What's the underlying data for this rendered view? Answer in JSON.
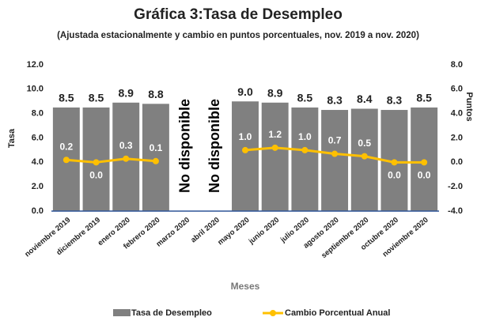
{
  "chart_data": {
    "type": "bar+line",
    "title": "Gráfica 3:Tasa de Desempleo",
    "subtitle": "(Ajustada estacionalmente y cambio en puntos porcentuales, nov. 2019 a nov. 2020)",
    "ylabel": "Tasa",
    "y2label": "Puntos",
    "xlabel": "Meses",
    "categories": [
      "noviembre 2019",
      "diciembre 2019",
      "enero 2020",
      "febrero 2020",
      "marzo 2020",
      "abril 2020",
      "mayo 2020",
      "junio 2020",
      "julio 2020",
      "agosto 2020",
      "septiembre 2020",
      "octubre 2020",
      "noviembre 2020"
    ],
    "series": [
      {
        "name": "Tasa de Desempleo",
        "type": "bar",
        "color": "#808080",
        "values": [
          8.5,
          8.5,
          8.9,
          8.8,
          null,
          null,
          9.0,
          8.9,
          8.5,
          8.3,
          8.4,
          8.3,
          8.5
        ],
        "value_labels": [
          "8.5",
          "8.5",
          "8.9",
          "8.8",
          null,
          null,
          "9.0",
          "8.9",
          "8.5",
          "8.3",
          "8.4",
          "8.3",
          "8.5"
        ]
      },
      {
        "name": "Cambio Porcentual Anual",
        "type": "line",
        "axis": "y2",
        "color": "#FFC000",
        "values": [
          0.2,
          0.0,
          0.3,
          0.1,
          null,
          null,
          1.0,
          1.2,
          1.0,
          0.7,
          0.5,
          0.0,
          0.0
        ],
        "value_labels": [
          "0.2",
          "0.0",
          "0.3",
          "0.1",
          null,
          null,
          "1.0",
          "1.2",
          "1.0",
          "0.7",
          "0.5",
          "0.0",
          "0.0"
        ]
      }
    ],
    "annotations": [
      "No disponible",
      "No disponible"
    ],
    "ylim": [
      0,
      12
    ],
    "yticks": [
      {
        "value": 0,
        "label": "0.0"
      },
      {
        "value": 2,
        "label": "2.0"
      },
      {
        "value": 4,
        "label": "4.0"
      },
      {
        "value": 6,
        "label": "6.0"
      },
      {
        "value": 8,
        "label": "8.0"
      },
      {
        "value": 10,
        "label": "10.0"
      },
      {
        "value": 12,
        "label": "12.0"
      }
    ],
    "y2lim": [
      -4,
      8
    ],
    "y2ticks": [
      {
        "value": -4,
        "label": "-4.0"
      },
      {
        "value": -2,
        "label": "-2.0"
      },
      {
        "value": 0,
        "label": "0.0"
      },
      {
        "value": 2,
        "label": "2.0"
      },
      {
        "value": 4,
        "label": "4.0"
      },
      {
        "value": 6,
        "label": "6.0"
      },
      {
        "value": 8,
        "label": "8.0"
      }
    ],
    "grid": false,
    "legend": "bottom"
  }
}
